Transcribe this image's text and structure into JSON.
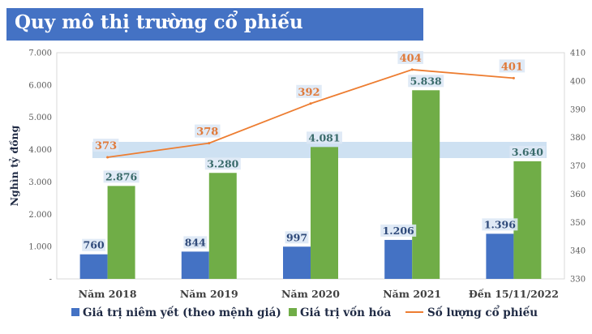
{
  "title": "Quy mô thị trường cổ phiếu",
  "chart_data": {
    "type": "bar",
    "categories": [
      "Năm 2018",
      "Năm 2019",
      "Năm 2020",
      "Năm 2021",
      "Đến 15/11/2022"
    ],
    "ylabel": "Nghìn tỷ đồng",
    "ylim": [
      0,
      7000
    ],
    "y_ticks": [
      "-",
      "1.000",
      "2.000",
      "3.000",
      "4.000",
      "5.000",
      "6.000",
      "7.000"
    ],
    "y2lim": [
      330,
      410
    ],
    "y2_ticks": [
      "330",
      "340",
      "350",
      "360",
      "370",
      "380",
      "390",
      "400",
      "410"
    ],
    "grid": false,
    "legend_position": "bottom",
    "series": [
      {
        "name": "Giá trị niêm yết (theo mệnh giá)",
        "type": "bar",
        "axis": "left",
        "color": "#4472c4",
        "values": [
          760,
          844,
          997,
          1206,
          1396
        ],
        "labels": [
          "760",
          "844",
          "997",
          "1.206",
          "1.396"
        ]
      },
      {
        "name": "Giá trị vốn hóa",
        "type": "bar",
        "axis": "left",
        "color": "#70ad47",
        "values": [
          2876,
          3280,
          4081,
          5838,
          3640
        ],
        "labels": [
          "2.876",
          "3.280",
          "4.081",
          "5.838",
          "3.640"
        ]
      },
      {
        "name": "Số lượng cổ phiếu",
        "type": "line",
        "axis": "right",
        "color": "#ed7d31",
        "values": [
          373,
          378,
          392,
          404,
          401
        ],
        "labels": [
          "373",
          "378",
          "392",
          "404",
          "401"
        ]
      }
    ]
  }
}
